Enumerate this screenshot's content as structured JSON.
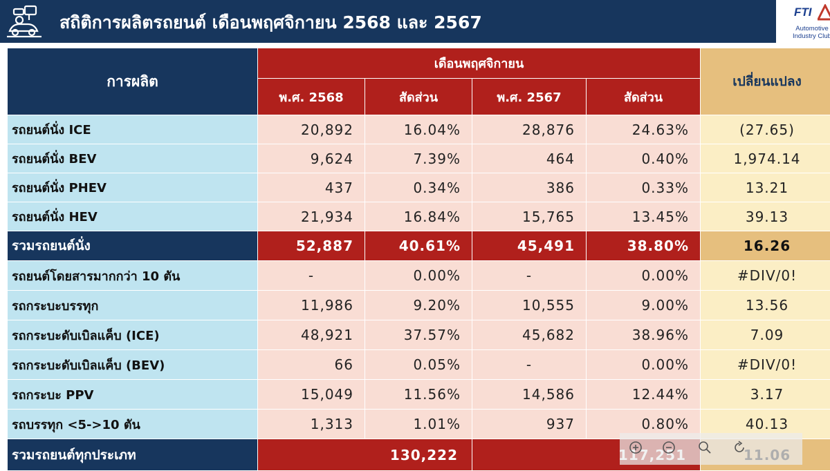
{
  "header": {
    "title": "สถิติการผลิตรถยนต์ เดือนพฤศจิกายน 2568 และ 2567",
    "logo_text": "FTI",
    "logo_sub_line1": "Automotive",
    "logo_sub_line2": "Industry Club"
  },
  "table": {
    "head_production": "การผลิต",
    "head_month": "เดือนพฤศจิกายน",
    "head_change": "เปลี่ยนแปลง",
    "col_2568": "พ.ศ. 2568",
    "col_share_1": "สัดส่วน",
    "col_2567": "พ.ศ. 2567",
    "col_share_2": "สัดส่วน",
    "rows": [
      {
        "label": "รถยนต์นั่ง ICE",
        "v2568": "20,892",
        "s2568": "16.04%",
        "v2567": "28,876",
        "s2567": "24.63%",
        "change": "(27.65)"
      },
      {
        "label": "รถยนต์นั่ง BEV",
        "v2568": "9,624",
        "s2568": "7.39%",
        "v2567": "464",
        "s2567": "0.40%",
        "change": "1,974.14"
      },
      {
        "label": "รถยนต์นั่ง PHEV",
        "v2568": "437",
        "s2568": "0.34%",
        "v2567": "386",
        "s2567": "0.33%",
        "change": "13.21"
      },
      {
        "label": "รถยนต์นั่ง HEV",
        "v2568": "21,934",
        "s2568": "16.84%",
        "v2567": "15,765",
        "s2567": "13.45%",
        "change": "39.13"
      }
    ],
    "subtotal": {
      "label": "รวมรถยนต์นั่ง",
      "v2568": "52,887",
      "s2568": "40.61%",
      "v2567": "45,491",
      "s2567": "38.80%",
      "change": "16.26"
    },
    "rows2": [
      {
        "label": "รถยนต์โดยสารมากกว่า 10 ตัน",
        "v2568": "-",
        "s2568": "0.00%",
        "v2567": "-",
        "s2567": "0.00%",
        "change": "#DIV/0!"
      },
      {
        "label": "รถกระบะบรรทุก",
        "v2568": "11,986",
        "s2568": "9.20%",
        "v2567": "10,555",
        "s2567": "9.00%",
        "change": "13.56"
      },
      {
        "label": "รถกระบะดับเบิลแค็บ (ICE)",
        "v2568": "48,921",
        "s2568": "37.57%",
        "v2567": "45,682",
        "s2567": "38.96%",
        "change": "7.09"
      },
      {
        "label": "รถกระบะดับเบิลแค็บ (BEV)",
        "v2568": "66",
        "s2568": "0.05%",
        "v2567": "-",
        "s2567": "0.00%",
        "change": "#DIV/0!"
      },
      {
        "label": "รถกระบะ PPV",
        "v2568": "15,049",
        "s2568": "11.56%",
        "v2567": "14,586",
        "s2567": "12.44%",
        "change": "3.17"
      },
      {
        "label": "รถบรรทุก <5->10 ตัน",
        "v2568": "1,313",
        "s2568": "1.01%",
        "v2567": "937",
        "s2567": "0.80%",
        "change": "40.13"
      }
    ],
    "grand_total": {
      "label": "รวมรถยนต์ทุกประเภท",
      "v2568": "130,222",
      "v2567": "117,251",
      "change": "11.06"
    }
  },
  "colors": {
    "navy": "#17365d",
    "red": "#b0201c",
    "light_blue": "#bfe4f0",
    "pink": "#f9ddd4",
    "cream": "#fbeec5",
    "tan": "#e6bf7e"
  },
  "icons": [
    "factory-icon",
    "fti-logo",
    "zoom-in-icon",
    "zoom-out-icon",
    "search-icon",
    "reset-icon"
  ]
}
